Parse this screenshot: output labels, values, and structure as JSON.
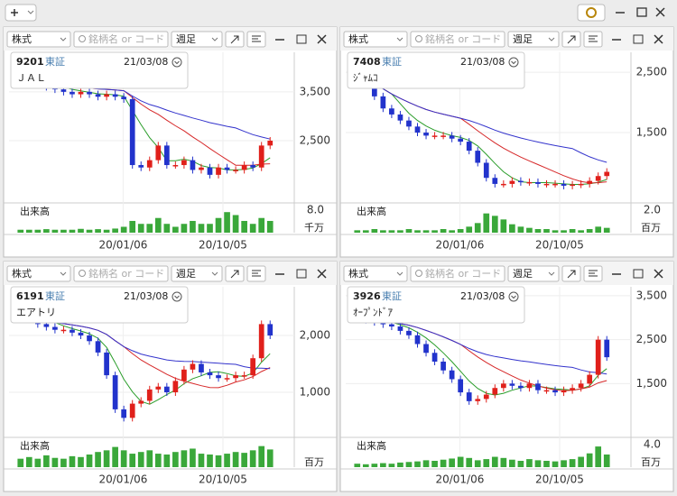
{
  "panels": [
    {
      "type": "select",
      "search": "銘柄名 or コード",
      "market": "株式",
      "period": "週足",
      "code": "9201",
      "exchange": "東証",
      "date": "21/03/08",
      "name": "ＪＡＬ",
      "ylim": [
        1280,
        4310
      ],
      "yticks": [
        {
          "value": 3500,
          "label": "3,500"
        },
        {
          "value": 2500,
          "label": "2,500"
        }
      ],
      "volume_label": "出来高",
      "vol_tick": "8.0",
      "vol_unit": "千万",
      "vol_ylim": [
        0,
        8.6
      ],
      "xlabels": [
        "20/01/06",
        "20/10/05"
      ],
      "prices": [
        3800,
        3700,
        3650,
        3600,
        3550,
        3500,
        3450,
        3500,
        3450,
        3400,
        3450,
        3400,
        3350,
        2000,
        1950,
        2100,
        2400,
        2000,
        2000,
        2100,
        1900,
        1950,
        1800,
        1950,
        1900,
        1900,
        2000,
        1950,
        2400,
        2500
      ],
      "volumes": [
        1,
        1,
        1,
        1.2,
        1,
        1,
        1,
        1.3,
        1,
        1.2,
        1,
        1.4,
        2,
        4,
        3,
        3,
        5,
        3,
        2,
        3,
        4,
        3,
        3,
        5,
        7,
        6,
        4,
        3,
        5,
        4
      ]
    },
    {
      "type": "select",
      "search": "銘柄名 or コード",
      "market": "株式",
      "period": "週足",
      "code": "7408",
      "exchange": "東証",
      "date": "21/03/08",
      "name": "ｼﾞｬﾑｺ",
      "ylim": [
        380,
        2830
      ],
      "yticks": [
        {
          "value": 2500,
          "label": "2,500"
        },
        {
          "value": 1500,
          "label": "1,500"
        }
      ],
      "volume_label": "出来高",
      "vol_tick": "2.0",
      "vol_unit": "百万",
      "vol_ylim": [
        0,
        2.1
      ],
      "xlabels": [
        "20/01/06",
        "20/10/05"
      ],
      "prices": [
        2500,
        2400,
        2100,
        1900,
        1800,
        1700,
        1600,
        1500,
        1450,
        1450,
        1450,
        1400,
        1350,
        1200,
        1000,
        750,
        650,
        650,
        700,
        680,
        680,
        650,
        650,
        650,
        620,
        640,
        650,
        700,
        780,
        850
      ],
      "volumes": [
        0.2,
        0.2,
        0.3,
        0.2,
        0.2,
        0.2,
        0.3,
        0.2,
        0.2,
        0.2,
        0.3,
        0.2,
        0.3,
        0.5,
        0.8,
        1.6,
        1.4,
        1.1,
        0.7,
        0.5,
        0.4,
        0.3,
        0.3,
        0.2,
        0.2,
        0.3,
        0.2,
        0.3,
        0.5,
        0.4
      ]
    },
    {
      "type": "select",
      "search": "銘柄名 or コード",
      "market": "株式",
      "period": "週足",
      "code": "6191",
      "exchange": "東証",
      "date": "21/03/08",
      "name": "エアトリ",
      "ylim": [
        254,
        2857
      ],
      "yticks": [
        {
          "value": 2000,
          "label": "2,000"
        },
        {
          "value": 1000,
          "label": "1,000"
        }
      ],
      "volume_label": "出来高",
      "vol_unit": "百万",
      "vol_ylim": [
        0,
        3
      ],
      "xlabels": [
        "20/01/06",
        "20/10/05"
      ],
      "prices": [
        2400,
        2300,
        2200,
        2150,
        2100,
        2100,
        2050,
        2000,
        1900,
        1700,
        1300,
        700,
        550,
        800,
        850,
        1050,
        1100,
        1000,
        1200,
        1400,
        1500,
        1350,
        1300,
        1250,
        1250,
        1300,
        1300,
        1600,
        2200,
        2000
      ],
      "volumes": [
        1,
        1.2,
        1,
        1.4,
        1.1,
        1,
        1.3,
        1.2,
        1.5,
        1.8,
        2,
        2.4,
        2,
        1.6,
        1.8,
        2,
        1.6,
        1.5,
        1.8,
        2,
        2.2,
        1.6,
        1.5,
        1.4,
        1.6,
        1.8,
        1.7,
        2,
        2.5,
        2.1
      ]
    },
    {
      "type": "select",
      "search": "銘柄名 or コード",
      "market": "株式",
      "period": "週足",
      "code": "3926",
      "exchange": "東証",
      "date": "21/03/08",
      "name": "ｵｰﾌﾟﾝﾄﾞｱ",
      "ylim": [
        337,
        3704
      ],
      "yticks": [
        {
          "value": 3500,
          "label": "3,500"
        },
        {
          "value": 2500,
          "label": "2,500"
        },
        {
          "value": 1500,
          "label": "1,500"
        }
      ],
      "volume_label": "出来高",
      "vol_tick": "4.0",
      "vol_unit": "百万",
      "vol_ylim": [
        0,
        4.4
      ],
      "xlabels": [
        "20/01/06",
        "20/10/05"
      ],
      "prices": [
        3000,
        2950,
        2900,
        2850,
        2800,
        2700,
        2600,
        2400,
        2200,
        2000,
        1800,
        1600,
        1300,
        1100,
        1150,
        1250,
        1400,
        1500,
        1450,
        1400,
        1500,
        1350,
        1350,
        1300,
        1350,
        1400,
        1500,
        1700,
        2500,
        2100
      ],
      "volumes": [
        0.6,
        0.5,
        0.6,
        0.7,
        0.6,
        0.8,
        0.9,
        1,
        1.2,
        1.1,
        1.3,
        1.5,
        1.8,
        1.6,
        1.2,
        1.4,
        1.8,
        1.6,
        1.3,
        1.1,
        1.4,
        1.2,
        1.1,
        1,
        1.2,
        1.4,
        1.8,
        2.4,
        3.6,
        2.2
      ]
    }
  ]
}
